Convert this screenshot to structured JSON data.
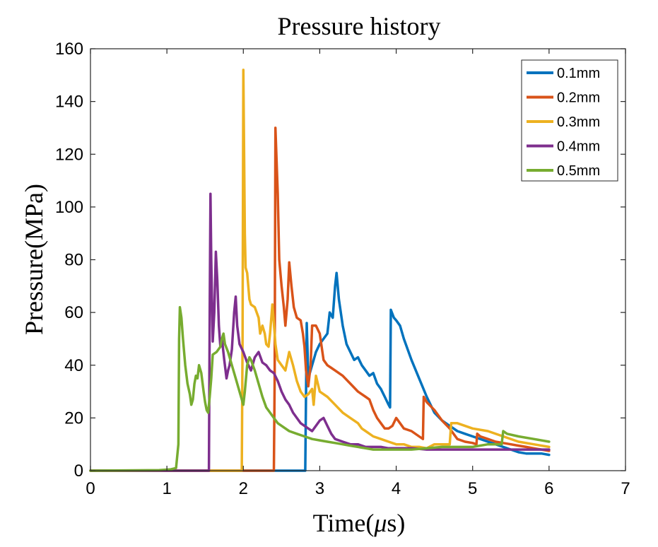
{
  "chart_data": {
    "type": "line",
    "title": "Pressure history",
    "xlabel_main": "Time(",
    "xlabel_symbol": "μ",
    "xlabel_unit": "s)",
    "ylabel": "Pressure(MPa)",
    "xlim": [
      0,
      7
    ],
    "ylim": [
      0,
      160
    ],
    "xticks": [
      "0",
      "1",
      "2",
      "3",
      "4",
      "5",
      "6",
      "7"
    ],
    "yticks": [
      "0",
      "20",
      "40",
      "60",
      "80",
      "100",
      "120",
      "140",
      "160"
    ],
    "grid": false,
    "legend_position": "top-right",
    "series": [
      {
        "name": "0.1mm",
        "color": "#0072BD",
        "points": [
          [
            0,
            0
          ],
          [
            2.81,
            0
          ],
          [
            2.83,
            56
          ],
          [
            2.85,
            35
          ],
          [
            2.9,
            40
          ],
          [
            2.95,
            45
          ],
          [
            3.0,
            48
          ],
          [
            3.05,
            50
          ],
          [
            3.1,
            52
          ],
          [
            3.13,
            60
          ],
          [
            3.17,
            58
          ],
          [
            3.2,
            70
          ],
          [
            3.22,
            75
          ],
          [
            3.25,
            65
          ],
          [
            3.3,
            55
          ],
          [
            3.35,
            48
          ],
          [
            3.4,
            45
          ],
          [
            3.45,
            42
          ],
          [
            3.5,
            43
          ],
          [
            3.55,
            40
          ],
          [
            3.6,
            38
          ],
          [
            3.65,
            36
          ],
          [
            3.7,
            37
          ],
          [
            3.75,
            33
          ],
          [
            3.8,
            31
          ],
          [
            3.85,
            28
          ],
          [
            3.9,
            25
          ],
          [
            3.92,
            24
          ],
          [
            3.93,
            61
          ],
          [
            3.97,
            58
          ],
          [
            4.0,
            57
          ],
          [
            4.05,
            55
          ],
          [
            4.1,
            50
          ],
          [
            4.2,
            42
          ],
          [
            4.3,
            35
          ],
          [
            4.4,
            28
          ],
          [
            4.5,
            22
          ],
          [
            4.6,
            19
          ],
          [
            4.7,
            17
          ],
          [
            4.8,
            15
          ],
          [
            4.9,
            14
          ],
          [
            5.0,
            13
          ],
          [
            5.1,
            12
          ],
          [
            5.2,
            11
          ],
          [
            5.3,
            10
          ],
          [
            5.4,
            9
          ],
          [
            5.5,
            8
          ],
          [
            5.6,
            7
          ],
          [
            5.7,
            6.5
          ],
          [
            5.8,
            6.5
          ],
          [
            5.9,
            6.5
          ],
          [
            6.0,
            6
          ]
        ]
      },
      {
        "name": "0.2mm",
        "color": "#D95319",
        "points": [
          [
            0,
            0
          ],
          [
            2.4,
            0
          ],
          [
            2.41,
            35
          ],
          [
            2.42,
            130
          ],
          [
            2.45,
            105
          ],
          [
            2.47,
            80
          ],
          [
            2.5,
            70
          ],
          [
            2.53,
            62
          ],
          [
            2.55,
            55
          ],
          [
            2.58,
            65
          ],
          [
            2.6,
            79
          ],
          [
            2.63,
            70
          ],
          [
            2.66,
            62
          ],
          [
            2.7,
            58
          ],
          [
            2.75,
            57
          ],
          [
            2.78,
            52
          ],
          [
            2.8,
            47
          ],
          [
            2.82,
            38
          ],
          [
            2.85,
            32
          ],
          [
            2.88,
            40
          ],
          [
            2.9,
            55
          ],
          [
            2.95,
            55
          ],
          [
            3.0,
            52
          ],
          [
            3.05,
            42
          ],
          [
            3.1,
            40
          ],
          [
            3.15,
            39
          ],
          [
            3.2,
            38
          ],
          [
            3.3,
            36
          ],
          [
            3.4,
            33
          ],
          [
            3.5,
            30
          ],
          [
            3.55,
            29
          ],
          [
            3.6,
            28
          ],
          [
            3.65,
            27
          ],
          [
            3.7,
            23
          ],
          [
            3.75,
            20
          ],
          [
            3.8,
            18
          ],
          [
            3.85,
            16
          ],
          [
            3.9,
            16
          ],
          [
            3.95,
            17
          ],
          [
            4.0,
            20
          ],
          [
            4.05,
            18
          ],
          [
            4.1,
            16
          ],
          [
            4.2,
            15
          ],
          [
            4.3,
            13
          ],
          [
            4.35,
            12
          ],
          [
            4.36,
            28
          ],
          [
            4.4,
            26
          ],
          [
            4.5,
            23
          ],
          [
            4.6,
            19
          ],
          [
            4.7,
            16
          ],
          [
            4.75,
            14
          ],
          [
            4.8,
            12
          ],
          [
            4.9,
            11
          ],
          [
            5.0,
            10.5
          ],
          [
            5.05,
            10
          ],
          [
            5.06,
            14
          ],
          [
            5.1,
            13
          ],
          [
            5.2,
            12
          ],
          [
            5.3,
            11
          ],
          [
            5.4,
            10.5
          ],
          [
            5.5,
            10
          ],
          [
            5.6,
            9.5
          ],
          [
            5.7,
            9
          ],
          [
            5.8,
            8.5
          ],
          [
            5.9,
            8
          ],
          [
            6.0,
            7.5
          ]
        ]
      },
      {
        "name": "0.3mm",
        "color": "#EDB120",
        "points": [
          [
            0,
            0
          ],
          [
            1.98,
            0
          ],
          [
            1.99,
            50
          ],
          [
            2.0,
            152
          ],
          [
            2.01,
            120
          ],
          [
            2.02,
            90
          ],
          [
            2.03,
            77
          ],
          [
            2.05,
            75
          ],
          [
            2.08,
            65
          ],
          [
            2.1,
            63
          ],
          [
            2.15,
            62
          ],
          [
            2.2,
            58
          ],
          [
            2.22,
            52
          ],
          [
            2.25,
            55
          ],
          [
            2.28,
            52
          ],
          [
            2.3,
            48
          ],
          [
            2.33,
            47
          ],
          [
            2.35,
            52
          ],
          [
            2.38,
            63
          ],
          [
            2.4,
            56
          ],
          [
            2.42,
            48
          ],
          [
            2.45,
            42
          ],
          [
            2.5,
            40
          ],
          [
            2.55,
            38
          ],
          [
            2.6,
            45
          ],
          [
            2.65,
            40
          ],
          [
            2.7,
            34
          ],
          [
            2.75,
            30
          ],
          [
            2.8,
            28
          ],
          [
            2.85,
            29
          ],
          [
            2.9,
            31
          ],
          [
            2.92,
            25
          ],
          [
            2.95,
            36
          ],
          [
            3.0,
            30
          ],
          [
            3.1,
            28
          ],
          [
            3.2,
            25
          ],
          [
            3.3,
            22
          ],
          [
            3.4,
            20
          ],
          [
            3.5,
            18
          ],
          [
            3.55,
            16
          ],
          [
            3.6,
            15
          ],
          [
            3.7,
            13
          ],
          [
            3.8,
            12
          ],
          [
            3.9,
            11
          ],
          [
            4.0,
            10
          ],
          [
            4.1,
            10
          ],
          [
            4.2,
            9
          ],
          [
            4.3,
            9
          ],
          [
            4.4,
            8.5
          ],
          [
            4.5,
            10
          ],
          [
            4.6,
            10
          ],
          [
            4.7,
            10
          ],
          [
            4.72,
            18
          ],
          [
            4.8,
            18
          ],
          [
            5.0,
            16
          ],
          [
            5.2,
            15
          ],
          [
            5.4,
            13
          ],
          [
            5.6,
            11
          ],
          [
            5.8,
            10
          ],
          [
            6.0,
            9
          ]
        ]
      },
      {
        "name": "0.4mm",
        "color": "#7E2F8E",
        "points": [
          [
            0,
            0
          ],
          [
            1.55,
            0
          ],
          [
            1.56,
            60
          ],
          [
            1.57,
            105
          ],
          [
            1.58,
            80
          ],
          [
            1.6,
            49
          ],
          [
            1.62,
            60
          ],
          [
            1.64,
            83
          ],
          [
            1.66,
            72
          ],
          [
            1.68,
            55
          ],
          [
            1.7,
            47
          ],
          [
            1.72,
            50
          ],
          [
            1.75,
            42
          ],
          [
            1.78,
            35
          ],
          [
            1.8,
            38
          ],
          [
            1.82,
            40
          ],
          [
            1.85,
            46
          ],
          [
            1.88,
            60
          ],
          [
            1.9,
            66
          ],
          [
            1.92,
            55
          ],
          [
            1.95,
            48
          ],
          [
            2.0,
            45
          ],
          [
            2.05,
            41
          ],
          [
            2.1,
            38
          ],
          [
            2.15,
            43
          ],
          [
            2.2,
            45
          ],
          [
            2.25,
            41
          ],
          [
            2.3,
            40
          ],
          [
            2.35,
            38
          ],
          [
            2.4,
            37
          ],
          [
            2.45,
            34
          ],
          [
            2.5,
            30
          ],
          [
            2.55,
            27
          ],
          [
            2.6,
            25
          ],
          [
            2.65,
            22
          ],
          [
            2.7,
            20
          ],
          [
            2.75,
            18
          ],
          [
            2.8,
            17
          ],
          [
            2.85,
            16
          ],
          [
            2.9,
            15
          ],
          [
            3.0,
            19
          ],
          [
            3.05,
            20
          ],
          [
            3.1,
            17
          ],
          [
            3.15,
            14
          ],
          [
            3.2,
            12
          ],
          [
            3.3,
            11
          ],
          [
            3.4,
            10
          ],
          [
            3.5,
            10
          ],
          [
            3.6,
            9
          ],
          [
            3.7,
            9
          ],
          [
            3.8,
            9
          ],
          [
            3.9,
            8.5
          ],
          [
            4.0,
            8.5
          ],
          [
            4.2,
            8.5
          ],
          [
            4.4,
            8
          ],
          [
            4.6,
            8
          ],
          [
            4.8,
            8
          ],
          [
            5.0,
            8
          ],
          [
            5.2,
            8
          ],
          [
            5.4,
            8
          ],
          [
            5.6,
            8
          ],
          [
            5.8,
            8
          ],
          [
            6.0,
            8
          ]
        ]
      },
      {
        "name": "0.5mm",
        "color": "#77AC30",
        "points": [
          [
            0,
            0
          ],
          [
            0.9,
            0.2
          ],
          [
            1.05,
            0.5
          ],
          [
            1.12,
            1
          ],
          [
            1.15,
            10
          ],
          [
            1.16,
            50
          ],
          [
            1.17,
            62
          ],
          [
            1.19,
            58
          ],
          [
            1.21,
            50
          ],
          [
            1.24,
            40
          ],
          [
            1.27,
            33
          ],
          [
            1.3,
            29
          ],
          [
            1.32,
            25
          ],
          [
            1.34,
            27
          ],
          [
            1.36,
            33
          ],
          [
            1.38,
            36
          ],
          [
            1.4,
            35
          ],
          [
            1.42,
            40
          ],
          [
            1.45,
            37
          ],
          [
            1.48,
            30
          ],
          [
            1.5,
            26
          ],
          [
            1.52,
            23
          ],
          [
            1.54,
            22
          ],
          [
            1.56,
            28
          ],
          [
            1.58,
            35
          ],
          [
            1.6,
            44
          ],
          [
            1.65,
            45
          ],
          [
            1.7,
            47
          ],
          [
            1.72,
            50
          ],
          [
            1.74,
            52
          ],
          [
            1.76,
            48
          ],
          [
            1.8,
            45
          ],
          [
            1.85,
            40
          ],
          [
            1.9,
            35
          ],
          [
            1.95,
            30
          ],
          [
            2.0,
            25
          ],
          [
            2.02,
            30
          ],
          [
            2.05,
            40
          ],
          [
            2.08,
            43
          ],
          [
            2.1,
            42
          ],
          [
            2.15,
            38
          ],
          [
            2.2,
            33
          ],
          [
            2.25,
            28
          ],
          [
            2.3,
            24
          ],
          [
            2.35,
            22
          ],
          [
            2.4,
            20
          ],
          [
            2.45,
            18
          ],
          [
            2.5,
            17
          ],
          [
            2.6,
            15
          ],
          [
            2.7,
            14
          ],
          [
            2.8,
            13
          ],
          [
            2.9,
            12
          ],
          [
            3.0,
            11.5
          ],
          [
            3.1,
            11
          ],
          [
            3.2,
            10.5
          ],
          [
            3.3,
            10
          ],
          [
            3.4,
            9.5
          ],
          [
            3.5,
            9
          ],
          [
            3.6,
            8.5
          ],
          [
            3.7,
            8
          ],
          [
            3.8,
            8
          ],
          [
            3.9,
            8
          ],
          [
            4.0,
            8
          ],
          [
            4.2,
            8
          ],
          [
            4.4,
            8.5
          ],
          [
            4.6,
            9
          ],
          [
            4.8,
            9
          ],
          [
            5.0,
            9
          ],
          [
            5.2,
            10
          ],
          [
            5.38,
            10
          ],
          [
            5.4,
            15
          ],
          [
            5.45,
            14
          ],
          [
            5.6,
            13
          ],
          [
            5.8,
            12
          ],
          [
            6.0,
            11
          ]
        ]
      }
    ]
  }
}
